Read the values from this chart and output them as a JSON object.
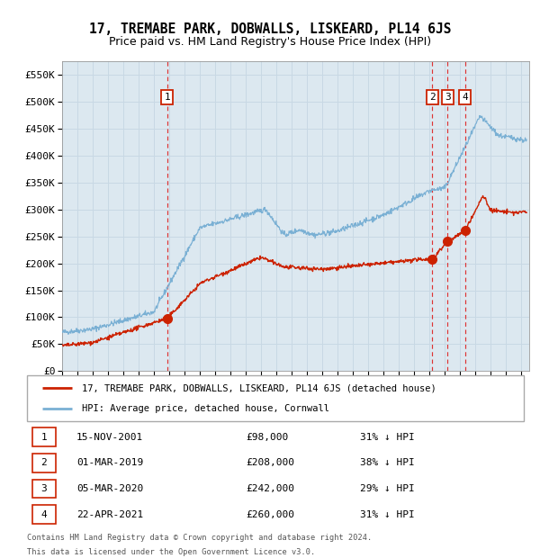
{
  "title": "17, TREMABE PARK, DOBWALLS, LISKEARD, PL14 6JS",
  "subtitle": "Price paid vs. HM Land Registry's House Price Index (HPI)",
  "title_fontsize": 10.5,
  "subtitle_fontsize": 9,
  "background_color": "#ffffff",
  "plot_bg_color": "#dce8f0",
  "grid_color": "#c8d8e4",
  "hpi_line_color": "#7ab0d4",
  "price_line_color": "#cc2200",
  "sale_marker_color": "#cc2200",
  "dashed_line_color": "#dd3333",
  "yticks": [
    0,
    50000,
    100000,
    150000,
    200000,
    250000,
    300000,
    350000,
    400000,
    450000,
    500000,
    550000
  ],
  "ylim": [
    0,
    575000
  ],
  "xlim_start": 1995.0,
  "xlim_end": 2025.5,
  "legend_items": [
    "17, TREMABE PARK, DOBWALLS, LISKEARD, PL14 6JS (detached house)",
    "HPI: Average price, detached house, Cornwall"
  ],
  "sales": [
    {
      "num": 1,
      "date_label": "15-NOV-2001",
      "price": 98000,
      "pct": "31%",
      "year_x": 2001.87
    },
    {
      "num": 2,
      "date_label": "01-MAR-2019",
      "price": 208000,
      "pct": "38%",
      "year_x": 2019.16
    },
    {
      "num": 3,
      "date_label": "05-MAR-2020",
      "price": 242000,
      "pct": "29%",
      "year_x": 2020.17
    },
    {
      "num": 4,
      "date_label": "22-APR-2021",
      "price": 260000,
      "pct": "31%",
      "year_x": 2021.3
    }
  ],
  "footer_lines": [
    "Contains HM Land Registry data © Crown copyright and database right 2024.",
    "This data is licensed under the Open Government Licence v3.0."
  ]
}
